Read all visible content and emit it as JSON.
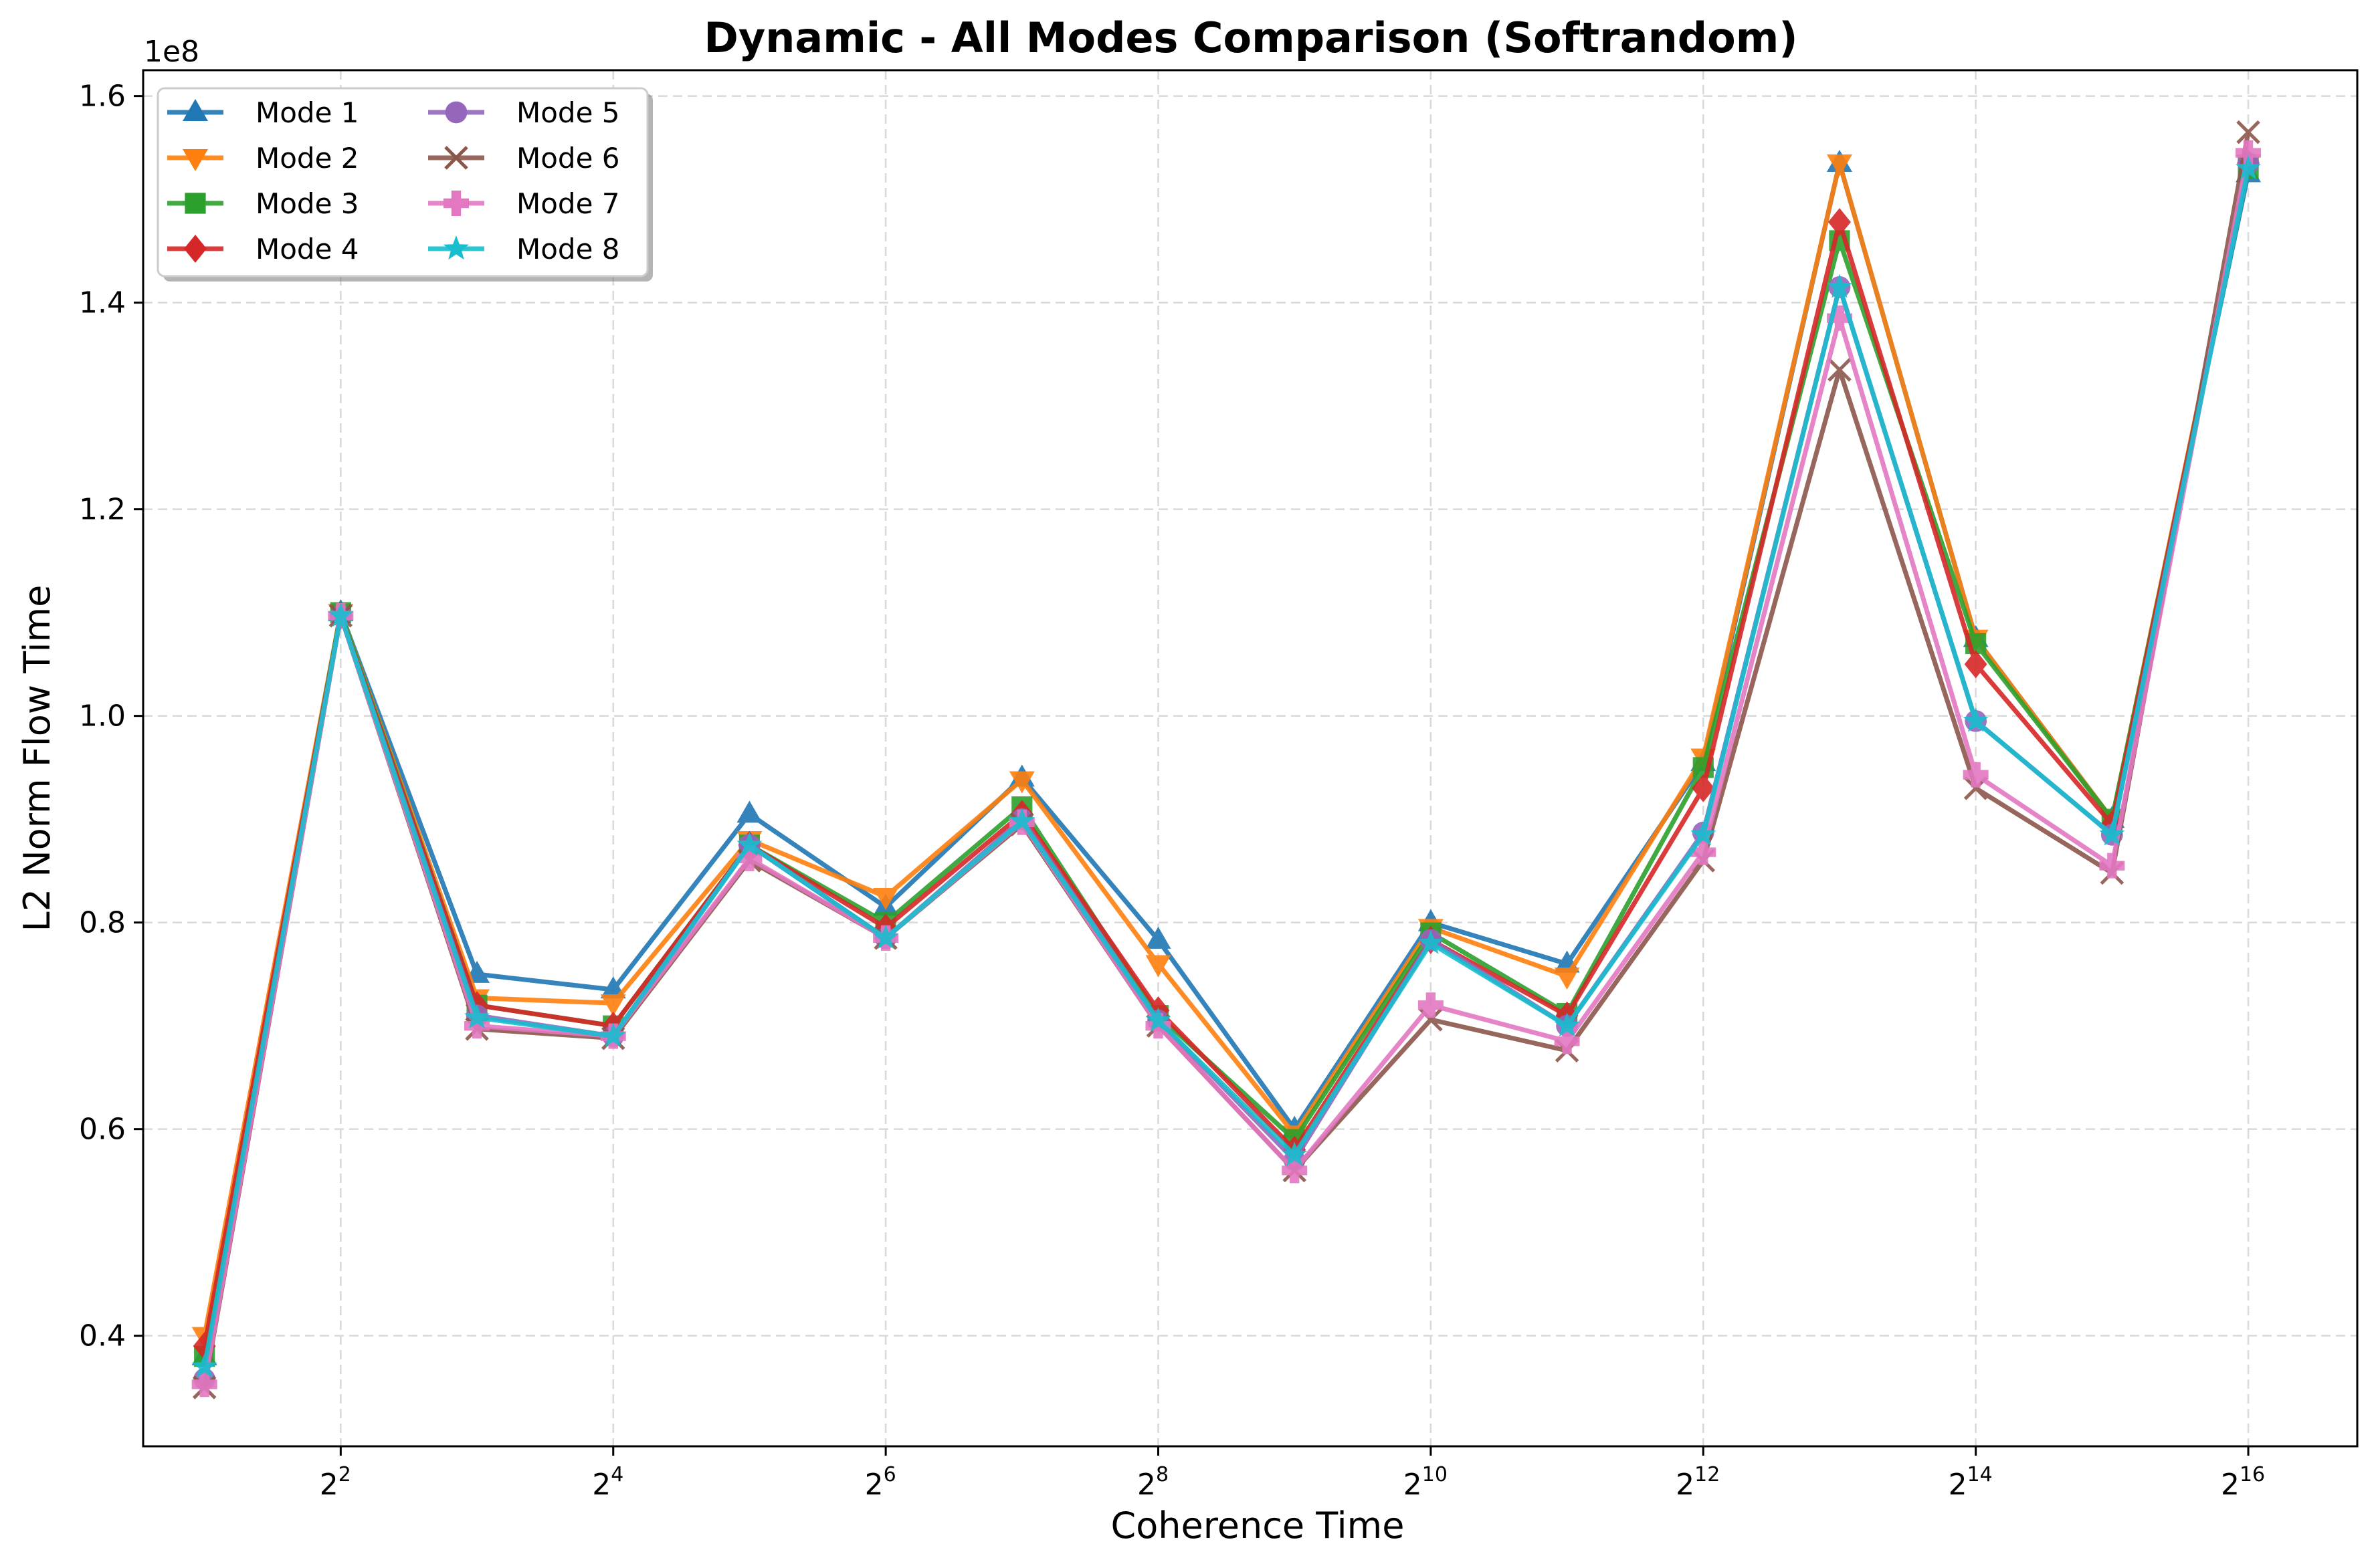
{
  "chart_data": {
    "type": "line",
    "title": "Dynamic - All Modes Comparison (Softrandom)",
    "xlabel": "Coherence Time",
    "ylabel": "L2 Norm Flow Time",
    "y_offset_label": "1e8",
    "x_scale": "log2",
    "x": [
      2,
      4,
      8,
      16,
      32,
      64,
      128,
      256,
      512,
      1024,
      2048,
      4096,
      8192,
      16384,
      32768,
      65536
    ],
    "x_tick_values": [
      4,
      16,
      64,
      256,
      1024,
      4096,
      16384,
      65536
    ],
    "x_tick_labels": [
      {
        "base": "2",
        "exp": "2"
      },
      {
        "base": "2",
        "exp": "4"
      },
      {
        "base": "2",
        "exp": "6"
      },
      {
        "base": "2",
        "exp": "8"
      },
      {
        "base": "2",
        "exp": "10"
      },
      {
        "base": "2",
        "exp": "12"
      },
      {
        "base": "2",
        "exp": "14"
      },
      {
        "base": "2",
        "exp": "16"
      }
    ],
    "y_ticks": [
      0.4,
      0.6,
      0.8,
      1.0,
      1.2,
      1.4,
      1.6
    ],
    "y_tick_labels": [
      "0.4",
      "0.6",
      "0.8",
      "1.0",
      "1.2",
      "1.4",
      "1.6"
    ],
    "ylim": [
      0.293,
      1.625
    ],
    "grid": true,
    "legend_position": "top-left",
    "series": [
      {
        "name": "Mode 1",
        "color": "#1f77b4",
        "marker": "triangle-up",
        "values": [
          0.38,
          1.1,
          0.75,
          0.735,
          0.905,
          0.815,
          0.94,
          0.783,
          0.6,
          0.8,
          0.76,
          0.955,
          1.535,
          1.075,
          0.9,
          1.525
        ]
      },
      {
        "name": "Mode 2",
        "color": "#ff7f0e",
        "marker": "triangle-down",
        "values": [
          0.4,
          1.1,
          0.727,
          0.722,
          0.88,
          0.825,
          0.938,
          0.76,
          0.595,
          0.795,
          0.748,
          0.96,
          1.535,
          1.075,
          0.9,
          1.535
        ]
      },
      {
        "name": "Mode 3",
        "color": "#2ca02c",
        "marker": "square",
        "values": [
          0.38,
          1.1,
          0.72,
          0.7,
          0.875,
          0.8,
          0.912,
          0.71,
          0.59,
          0.79,
          0.712,
          0.95,
          1.46,
          1.07,
          0.9,
          1.53
        ]
      },
      {
        "name": "Mode 4",
        "color": "#d62728",
        "marker": "diamond",
        "values": [
          0.39,
          1.097,
          0.72,
          0.7,
          0.875,
          0.795,
          0.905,
          0.715,
          0.58,
          0.783,
          0.71,
          0.93,
          1.478,
          1.05,
          0.895,
          1.535
        ]
      },
      {
        "name": "Mode 5",
        "color": "#9467bd",
        "marker": "circle",
        "values": [
          0.358,
          1.097,
          0.71,
          0.69,
          0.875,
          0.785,
          0.9,
          0.705,
          0.57,
          0.783,
          0.7,
          0.887,
          1.415,
          0.995,
          0.885,
          1.535
        ]
      },
      {
        "name": "Mode 6",
        "color": "#8c564b",
        "marker": "x",
        "values": [
          0.35,
          1.097,
          0.697,
          0.688,
          0.86,
          0.785,
          0.895,
          0.7,
          0.56,
          0.706,
          0.676,
          0.86,
          1.335,
          0.93,
          0.848,
          1.565
        ]
      },
      {
        "name": "Mode 7",
        "color": "#e377c2",
        "marker": "plus",
        "values": [
          0.353,
          1.097,
          0.7,
          0.69,
          0.862,
          0.785,
          0.897,
          0.7,
          0.56,
          0.72,
          0.685,
          0.868,
          1.385,
          0.943,
          0.855,
          1.545
        ]
      },
      {
        "name": "Mode 8",
        "color": "#17becf",
        "marker": "star",
        "values": [
          0.37,
          1.097,
          0.708,
          0.69,
          0.875,
          0.785,
          0.898,
          0.705,
          0.575,
          0.78,
          0.7,
          0.885,
          1.415,
          0.995,
          0.885,
          1.53
        ]
      }
    ]
  }
}
